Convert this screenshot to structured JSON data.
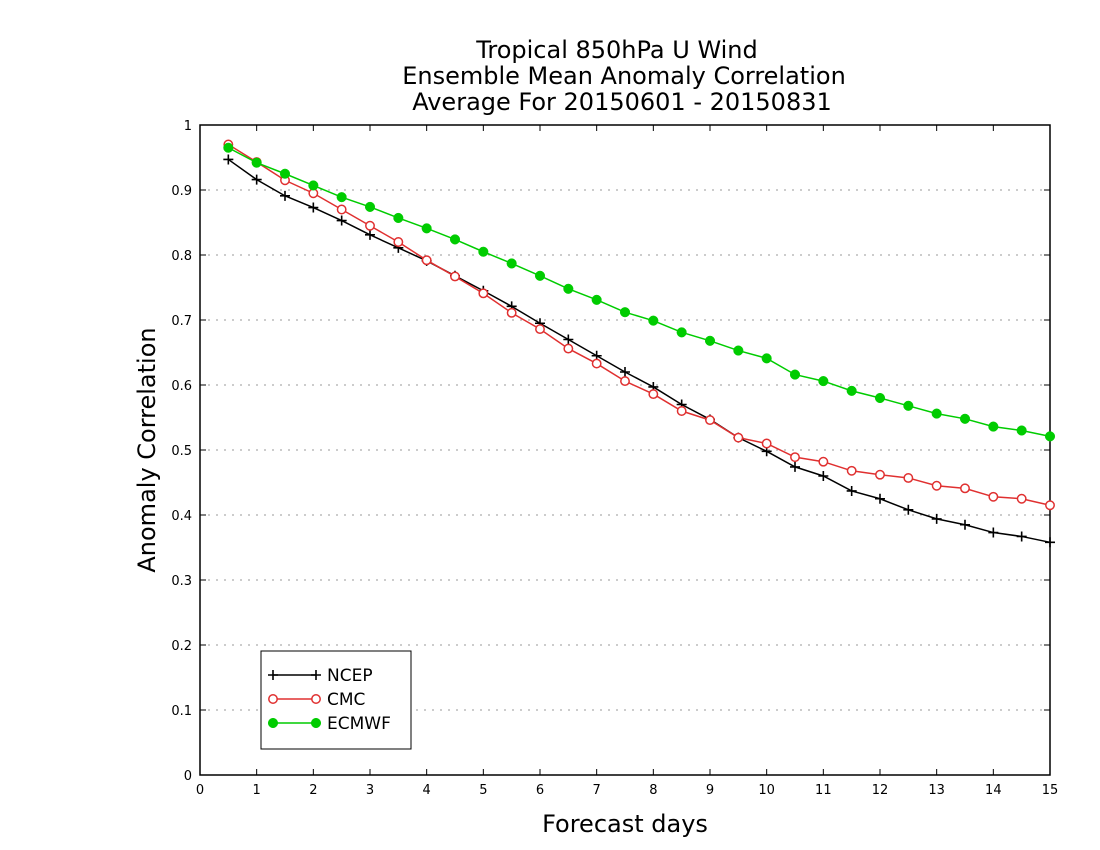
{
  "chart_data": {
    "type": "line",
    "title_lines": [
      "Tropical 850hPa U Wind",
      "Ensemble Mean Anomaly Correlation",
      "Average For 20150601 - 20150831"
    ],
    "xlabel": "Forecast days",
    "ylabel": "Anomaly Correlation",
    "xlim": [
      0,
      15
    ],
    "ylim": [
      0,
      1
    ],
    "xticks": [
      "0",
      "1",
      "2",
      "3",
      "4",
      "5",
      "6",
      "7",
      "8",
      "9",
      "10",
      "11",
      "12",
      "13",
      "14",
      "15"
    ],
    "yticks": [
      "0",
      "0.1",
      "0.2",
      "0.3",
      "0.4",
      "0.5",
      "0.6",
      "0.7",
      "0.8",
      "0.9",
      "1"
    ],
    "grid": true,
    "legend_position": "bottom-left",
    "x": [
      0.5,
      1,
      1.5,
      2,
      2.5,
      3,
      3.5,
      4,
      4.5,
      5,
      5.5,
      6,
      6.5,
      7,
      7.5,
      8,
      8.5,
      9,
      9.5,
      10,
      10.5,
      11,
      11.5,
      12,
      12.5,
      13,
      13.5,
      14,
      14.5,
      15
    ],
    "series": [
      {
        "name": "NCEP",
        "color": "#000000",
        "marker": "plus",
        "values": [
          0.947,
          0.916,
          0.891,
          0.873,
          0.853,
          0.831,
          0.811,
          0.791,
          0.768,
          0.745,
          0.721,
          0.695,
          0.67,
          0.645,
          0.62,
          0.597,
          0.57,
          0.547,
          0.519,
          0.498,
          0.474,
          0.46,
          0.437,
          0.425,
          0.408,
          0.394,
          0.385,
          0.373,
          0.367,
          0.358
        ]
      },
      {
        "name": "CMC",
        "color": "#e03030",
        "marker": "open-circle",
        "values": [
          0.97,
          0.943,
          0.915,
          0.895,
          0.87,
          0.845,
          0.82,
          0.792,
          0.767,
          0.741,
          0.711,
          0.686,
          0.656,
          0.633,
          0.606,
          0.586,
          0.56,
          0.546,
          0.519,
          0.51,
          0.489,
          0.482,
          0.468,
          0.462,
          0.457,
          0.445,
          0.441,
          0.428,
          0.425,
          0.415
        ]
      },
      {
        "name": "ECMWF",
        "color": "#00cc00",
        "marker": "filled-circle",
        "values": [
          0.965,
          0.942,
          0.925,
          0.907,
          0.889,
          0.874,
          0.857,
          0.841,
          0.824,
          0.805,
          0.787,
          0.768,
          0.748,
          0.731,
          0.712,
          0.699,
          0.681,
          0.668,
          0.653,
          0.641,
          0.616,
          0.606,
          0.591,
          0.58,
          0.568,
          0.556,
          0.548,
          0.536,
          0.53,
          0.521
        ]
      }
    ]
  }
}
